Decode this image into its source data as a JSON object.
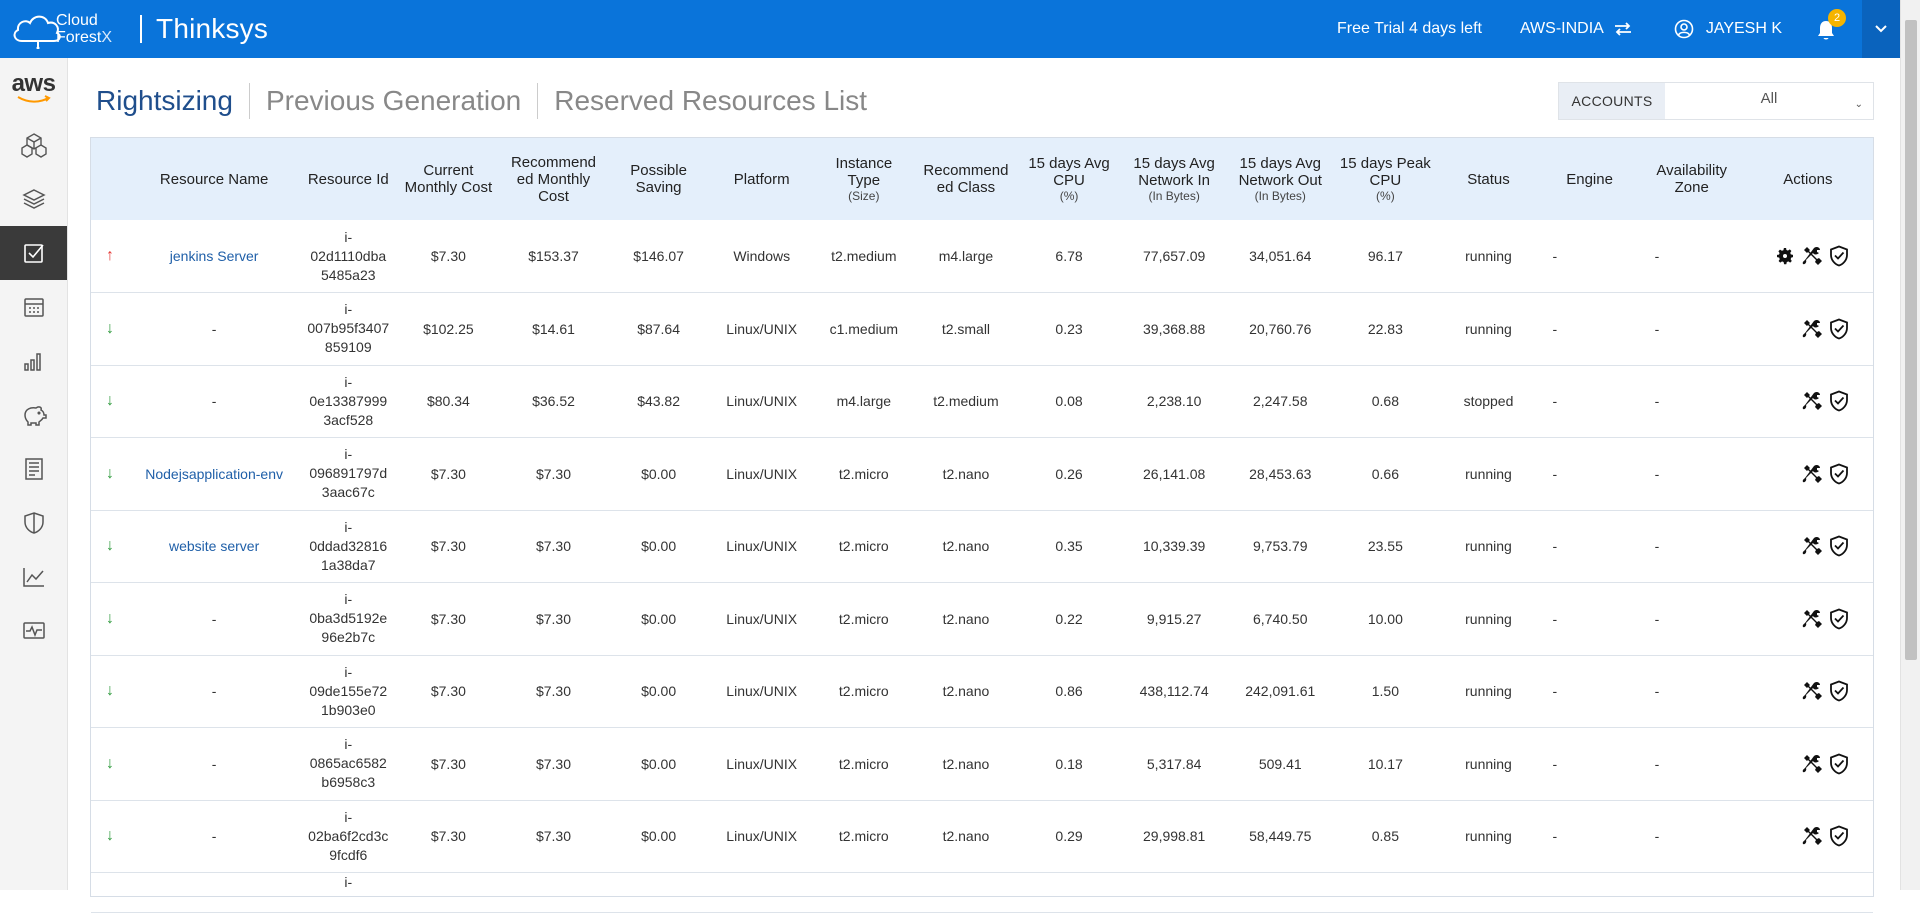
{
  "brand": {
    "logo_line1": "Cloud",
    "logo_line2": "Forest",
    "logo_x": "X",
    "company": "Thinksys"
  },
  "topbar": {
    "trial_text": "Free Trial 4 days left",
    "region": "AWS-INDIA",
    "user": "JAYESH K",
    "notifications_count": "2"
  },
  "sidebar": {
    "logo": "aws",
    "items": [
      "cube-icon",
      "layers-icon",
      "checklist-icon",
      "calendar-icon",
      "bar-chart-icon",
      "piggy-bank-icon",
      "report-icon",
      "shield-icon",
      "line-chart-icon",
      "monitor-icon"
    ],
    "active_index": 2
  },
  "tabs": [
    "Rightsizing",
    "Previous Generation",
    "Reserved Resources List"
  ],
  "accounts": {
    "label": "ACCOUNTS",
    "value": "All"
  },
  "table": {
    "headers": [
      {
        "label": ""
      },
      {
        "label": "Resource Name"
      },
      {
        "label": "Resource Id"
      },
      {
        "label": "Current Monthly Cost"
      },
      {
        "label": "Recommend ed Monthly Cost"
      },
      {
        "label": "Possible Saving"
      },
      {
        "label": "Platform"
      },
      {
        "label": "Instance Type",
        "sub": "(Size)"
      },
      {
        "label": "Recommend ed Class"
      },
      {
        "label": "15 days Avg CPU",
        "sub": "(%)"
      },
      {
        "label": "15 days Avg Network In",
        "sub": "(In Bytes)"
      },
      {
        "label": "15 days Avg Network Out",
        "sub": "(In Bytes)"
      },
      {
        "label": "15 days Peak CPU",
        "sub": "(%)"
      },
      {
        "label": "Status"
      },
      {
        "label": "Engine"
      },
      {
        "label": "Availability Zone"
      },
      {
        "label": "Actions"
      }
    ],
    "rows": [
      {
        "trend": "up",
        "name": "jenkins Server",
        "id": [
          "i-",
          "02d1110dba",
          "5485a23"
        ],
        "current": "$7.30",
        "recommended": "$153.37",
        "saving": "$146.07",
        "platform": "Windows",
        "type": "t2.medium",
        "rec_class": "m4.large",
        "cpu": "6.78",
        "net_in": "77,657.09",
        "net_out": "34,051.64",
        "peak": "96.17",
        "status": "running",
        "engine": "-",
        "zone": "-",
        "has_settings": true
      },
      {
        "trend": "down",
        "name": "-",
        "id": [
          "i-",
          "007b95f3407",
          "859109"
        ],
        "current": "$102.25",
        "recommended": "$14.61",
        "saving": "$87.64",
        "platform": "Linux/UNIX",
        "type": "c1.medium",
        "rec_class": "t2.small",
        "cpu": "0.23",
        "net_in": "39,368.88",
        "net_out": "20,760.76",
        "peak": "22.83",
        "status": "running",
        "engine": "-",
        "zone": "-",
        "has_settings": false
      },
      {
        "trend": "down",
        "name": "-",
        "id": [
          "i-",
          "0e13387999",
          "3acf528"
        ],
        "current": "$80.34",
        "recommended": "$36.52",
        "saving": "$43.82",
        "platform": "Linux/UNIX",
        "type": "m4.large",
        "rec_class": "t2.medium",
        "cpu": "0.08",
        "net_in": "2,238.10",
        "net_out": "2,247.58",
        "peak": "0.68",
        "status": "stopped",
        "engine": "-",
        "zone": "-",
        "has_settings": false
      },
      {
        "trend": "down",
        "name": "Nodejsapplication-env",
        "id": [
          "i-",
          "096891797d",
          "3aac67c"
        ],
        "current": "$7.30",
        "recommended": "$7.30",
        "saving": "$0.00",
        "platform": "Linux/UNIX",
        "type": "t2.micro",
        "rec_class": "t2.nano",
        "cpu": "0.26",
        "net_in": "26,141.08",
        "net_out": "28,453.63",
        "peak": "0.66",
        "status": "running",
        "engine": "-",
        "zone": "-",
        "has_settings": false
      },
      {
        "trend": "down",
        "name": "website server",
        "id": [
          "i-",
          "0ddad32816",
          "1a38da7"
        ],
        "current": "$7.30",
        "recommended": "$7.30",
        "saving": "$0.00",
        "platform": "Linux/UNIX",
        "type": "t2.micro",
        "rec_class": "t2.nano",
        "cpu": "0.35",
        "net_in": "10,339.39",
        "net_out": "9,753.79",
        "peak": "23.55",
        "status": "running",
        "engine": "-",
        "zone": "-",
        "has_settings": false
      },
      {
        "trend": "down",
        "name": "-",
        "id": [
          "i-",
          "0ba3d5192e",
          "96e2b7c"
        ],
        "current": "$7.30",
        "recommended": "$7.30",
        "saving": "$0.00",
        "platform": "Linux/UNIX",
        "type": "t2.micro",
        "rec_class": "t2.nano",
        "cpu": "0.22",
        "net_in": "9,915.27",
        "net_out": "6,740.50",
        "peak": "10.00",
        "status": "running",
        "engine": "-",
        "zone": "-",
        "has_settings": false
      },
      {
        "trend": "down",
        "name": "-",
        "id": [
          "i-",
          "09de155e72",
          "1b903e0"
        ],
        "current": "$7.30",
        "recommended": "$7.30",
        "saving": "$0.00",
        "platform": "Linux/UNIX",
        "type": "t2.micro",
        "rec_class": "t2.nano",
        "cpu": "0.86",
        "net_in": "438,112.74",
        "net_out": "242,091.61",
        "peak": "1.50",
        "status": "running",
        "engine": "-",
        "zone": "-",
        "has_settings": false
      },
      {
        "trend": "down",
        "name": "-",
        "id": [
          "i-",
          "0865ac6582",
          "b6958c3"
        ],
        "current": "$7.30",
        "recommended": "$7.30",
        "saving": "$0.00",
        "platform": "Linux/UNIX",
        "type": "t2.micro",
        "rec_class": "t2.nano",
        "cpu": "0.18",
        "net_in": "5,317.84",
        "net_out": "509.41",
        "peak": "10.17",
        "status": "running",
        "engine": "-",
        "zone": "-",
        "has_settings": false
      },
      {
        "trend": "down",
        "name": "-",
        "id": [
          "i-",
          "02ba6f2cd3c",
          "9fcdf6"
        ],
        "current": "$7.30",
        "recommended": "$7.30",
        "saving": "$0.00",
        "platform": "Linux/UNIX",
        "type": "t2.micro",
        "rec_class": "t2.nano",
        "cpu": "0.29",
        "net_in": "29,998.81",
        "net_out": "58,449.75",
        "peak": "0.85",
        "status": "running",
        "engine": "-",
        "zone": "-",
        "has_settings": false
      },
      {
        "trend": "",
        "name": "",
        "id": [
          "i-"
        ],
        "current": "",
        "recommended": "",
        "saving": "",
        "platform": "",
        "type": "",
        "rec_class": "",
        "cpu": "",
        "net_in": "",
        "net_out": "",
        "peak": "",
        "status": "",
        "engine": "",
        "zone": "",
        "has_settings": false,
        "partial": true
      }
    ]
  }
}
